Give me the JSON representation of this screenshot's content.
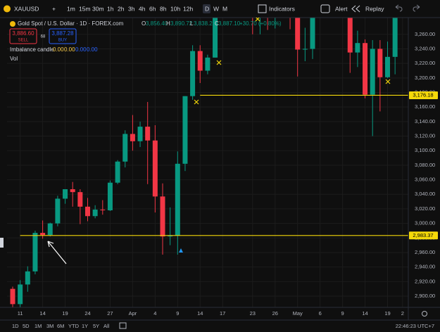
{
  "toolbar": {
    "symbol": "XAUUSD",
    "timeframes": [
      "1m",
      "15m",
      "30m",
      "1h",
      "2h",
      "3h",
      "4h",
      "6h",
      "8h",
      "10h",
      "12h",
      "D",
      "W",
      "M"
    ],
    "indicators": "Indicators",
    "alert": "Alert",
    "replay": "Replay"
  },
  "legend": {
    "title": "Gold Spot / U.S. Dollar · 1D · FOREX.com",
    "ohlc": [
      "O",
      "3,856.40",
      "H",
      "3,890.72",
      "L",
      "3,838.22",
      "C",
      "3,887.10"
    ],
    "change": "+30.70 (+0.80%)"
  },
  "trade": {
    "sell_price": "3,886.60",
    "sell": "SELL",
    "spread": "68",
    "buy_price": "3,887.28",
    "buy": "BUY"
  },
  "indicator": {
    "name": "Imbalance candle",
    "values": [
      "0.00",
      "0.00",
      "0.00",
      "0.00"
    ]
  },
  "volume": "Vol",
  "bottom": {
    "ranges": [
      "1D",
      "5D",
      "1M",
      "3M",
      "6M",
      "YTD",
      "1Y",
      "5Y",
      "All"
    ],
    "time": "22:46:23 UTC+7"
  },
  "chart_data": {
    "type": "candlestick",
    "categories": [
      null,
      "11",
      null,
      null,
      "14",
      null,
      null,
      "19",
      null,
      null,
      "24",
      null,
      null,
      "27",
      null,
      null,
      "Apr",
      null,
      null,
      "4",
      null,
      null,
      "9",
      null,
      null,
      "14",
      null,
      null,
      "17",
      null,
      null,
      null,
      "23",
      null,
      null,
      "26",
      null,
      null,
      "May",
      null,
      null,
      "6",
      null,
      null,
      "9",
      null,
      null,
      "14",
      null,
      null,
      "19",
      null,
      "2"
    ],
    "open": [
      2910,
      2889,
      2916,
      2934,
      2987,
      2984,
      3000,
      3034,
      3047,
      3043,
      3023,
      3010,
      3019,
      3018,
      3056,
      3085,
      3123,
      3113,
      3133,
      3114,
      3037,
      2982,
      2983,
      3082,
      3175,
      3237,
      3210,
      3228,
      3343,
      3327,
      3327,
      3424,
      3381,
      3288,
      3349,
      3319,
      3344,
      3317,
      3289,
      3239,
      3240,
      3334,
      3431,
      3366,
      3305,
      3325,
      3235,
      3248,
      3177,
      3240,
      3201,
      3229,
      null
    ],
    "high": [
      2913,
      2922,
      2941,
      2990,
      3004,
      3001,
      3038,
      3047,
      3057,
      3047,
      3035,
      3025,
      3032,
      3059,
      3087,
      3128,
      3149,
      3140,
      3167,
      3135,
      3055,
      3022,
      3099,
      3175,
      3245,
      3245,
      3232,
      3357,
      3357,
      3330,
      3430,
      3500,
      3386,
      3367,
      3371,
      3351,
      3353,
      3328,
      3294,
      3269,
      3336,
      3437,
      3434,
      3414,
      3335,
      3325,
      3265,
      3253,
      3252,
      3252,
      3250,
      3295,
      null
    ],
    "low": [
      2880,
      2880,
      2906,
      2930,
      2979,
      2982,
      2996,
      3027,
      3023,
      2999,
      3003,
      3007,
      3012,
      3017,
      3054,
      3077,
      3100,
      3105,
      3054,
      3015,
      2957,
      2970,
      2957,
      3072,
      3170,
      3193,
      3205,
      3228,
      3283,
      3320,
      3325,
      3367,
      3260,
      3260,
      3266,
      3268,
      3300,
      3267,
      3202,
      3223,
      3226,
      3317,
      3362,
      3293,
      3290,
      3207,
      3215,
      3172,
      3120,
      3154,
      3200,
      3205,
      null
    ],
    "close": [
      2889,
      2916,
      2934,
      2987,
      2984,
      3000,
      3034,
      3047,
      3043,
      3023,
      3010,
      3019,
      3018,
      3056,
      3085,
      3123,
      3113,
      3133,
      3114,
      3037,
      2982,
      2983,
      3082,
      3175,
      3237,
      3210,
      3228,
      3343,
      3327,
      3327,
      3424,
      3381,
      3288,
      3349,
      3319,
      3344,
      3317,
      3289,
      3239,
      3240,
      3334,
      3431,
      3366,
      3305,
      3325,
      3235,
      3248,
      3177,
      3240,
      3201,
      3229,
      3289,
      null
    ],
    "up_color": "#089981",
    "down_color": "#f23645",
    "ylim": [
      2885,
      3283
    ],
    "yticks": [
      {
        "value": 2900,
        "label": "2,900.00"
      },
      {
        "value": 2920,
        "label": "2,920.00"
      },
      {
        "value": 2940,
        "label": "2,940.00"
      },
      {
        "value": 2960,
        "label": "2,960.00"
      },
      {
        "value": 2980,
        "label": "2,980.00"
      },
      {
        "value": 3000,
        "label": "3,000.00"
      },
      {
        "value": 3020,
        "label": "3,020.00"
      },
      {
        "value": 3040,
        "label": "3,040.00"
      },
      {
        "value": 3060,
        "label": "3,060.00"
      },
      {
        "value": 3080,
        "label": "3,080.00"
      },
      {
        "value": 3100,
        "label": "3,100.00"
      },
      {
        "value": 3120,
        "label": "3,120.00"
      },
      {
        "value": 3140,
        "label": "3,140.00"
      },
      {
        "value": 3160,
        "label": "3,160.00"
      },
      {
        "value": 3180,
        "label": "3,180.00"
      },
      {
        "value": 3200,
        "label": "3,200.00"
      },
      {
        "value": 3220,
        "label": "3,220.00"
      },
      {
        "value": 3240,
        "label": "3,240.00"
      },
      {
        "value": 3260,
        "label": "3,260.00"
      }
    ],
    "hlines": [
      {
        "value": 3176.18,
        "label": "3,176.18",
        "color": "#f5d90a",
        "start": 25
      },
      {
        "value": 2983.37,
        "label": "2,983.37",
        "color": "#f5d90a",
        "start": 1
      }
    ],
    "grid": true
  }
}
